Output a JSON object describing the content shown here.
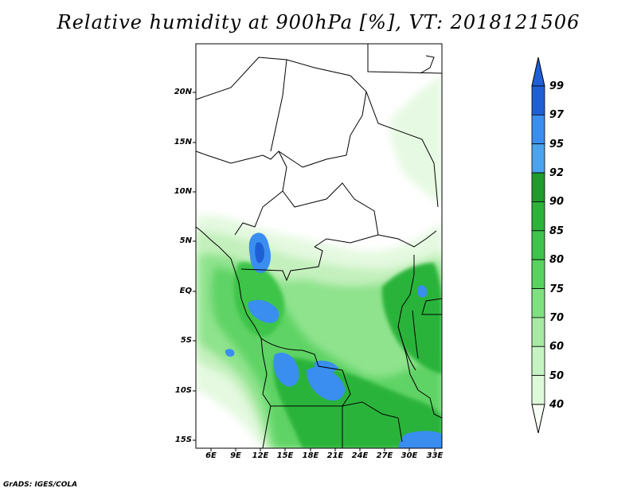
{
  "title": "Relative humidity at 900hPa [%], VT: 2018121506",
  "credit": "GrADS: IGES/COLA",
  "map": {
    "lat_labels": [
      "20N",
      "15N",
      "10N",
      "5N",
      "EQ",
      "5S",
      "10S",
      "15S"
    ],
    "lon_labels": [
      "6E",
      "9E",
      "12E",
      "15E",
      "18E",
      "21E",
      "24E",
      "27E",
      "30E",
      "33E"
    ]
  },
  "colorbar": {
    "labels": [
      "99",
      "97",
      "95",
      "92",
      "90",
      "85",
      "80",
      "75",
      "70",
      "60",
      "50",
      "40"
    ],
    "colors": [
      "#1f5fd6",
      "#3a8ef0",
      "#4aa3ee",
      "#1e9b2c",
      "#2bb33a",
      "#3ec44a",
      "#58d35f",
      "#7fe07f",
      "#a6eaa3",
      "#c6f3c2",
      "#def9d9",
      "#f1fdee"
    ]
  }
}
